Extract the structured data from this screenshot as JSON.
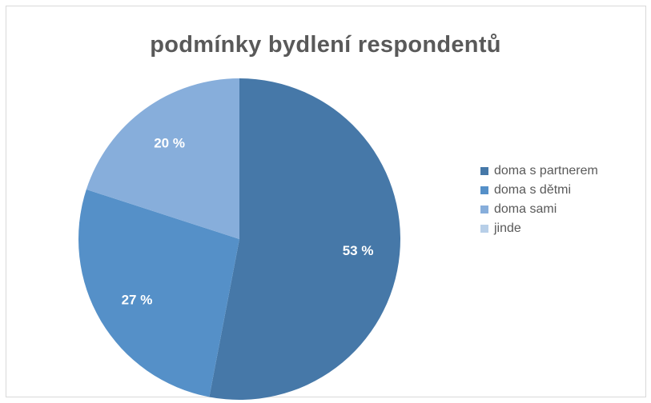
{
  "chart_data": {
    "type": "pie",
    "title": "podmínky bydlení respondentů",
    "categories": [
      "doma s partnerem",
      "doma s dětmi",
      "doma sami",
      "jinde"
    ],
    "values": [
      53,
      27,
      20,
      0
    ],
    "data_labels": [
      "53 %",
      "27 %",
      "20 %",
      ""
    ],
    "colors": [
      "#4678a8",
      "#5590c8",
      "#87aedb",
      "#b8cfe8"
    ],
    "legend_position": "right",
    "start_angle": "12 o'clock",
    "direction": "clockwise"
  }
}
